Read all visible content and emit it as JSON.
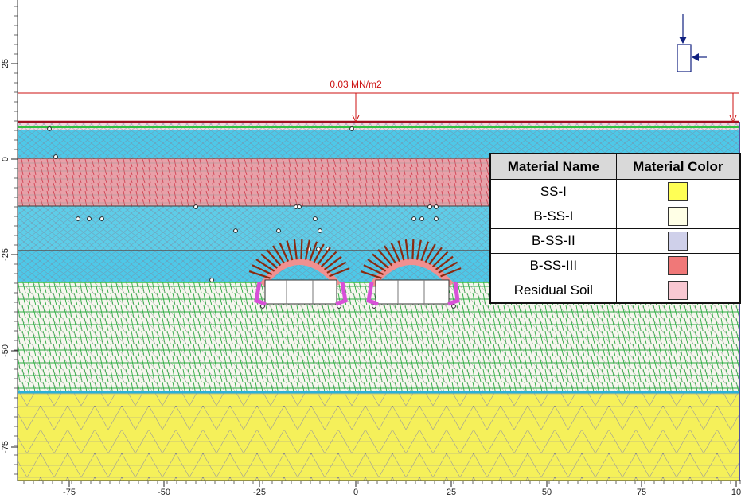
{
  "load": {
    "label": "0.03 MN/m2"
  },
  "x_axis": {
    "ticks": [
      "-75",
      "-50",
      "-25",
      "0",
      "25",
      "50",
      "75",
      "10"
    ]
  },
  "y_axis": {
    "ticks": [
      "25",
      "0",
      "-25",
      "-50",
      "-75"
    ]
  },
  "legend": {
    "headers": [
      "Material Name",
      "Material Color"
    ],
    "rows": [
      {
        "name": "SS-I",
        "color": "#ffff55"
      },
      {
        "name": "B-SS-I",
        "color": "#ffffe6"
      },
      {
        "name": "B-SS-II",
        "color": "#cfd0ea"
      },
      {
        "name": "B-SS-III",
        "color": "#f07878"
      },
      {
        "name": "Residual Soil",
        "color": "#f8c8d2"
      }
    ]
  },
  "colors": {
    "sand_layer": "#4ec8e8",
    "residual_layer": "#f0d8e0",
    "bss3_layer": "#e8a0a8",
    "bss1_layer": "#f6f6ee",
    "ss1_layer": "#f5f05a",
    "mesh_lines": "#9a9a9a",
    "green_mesh": "#2aaa40",
    "load_red": "#cc1111",
    "rock_bolt": "#8a2a10",
    "tunnel_support": "#d850d8"
  },
  "icons": [
    "support-fixity-icon"
  ]
}
